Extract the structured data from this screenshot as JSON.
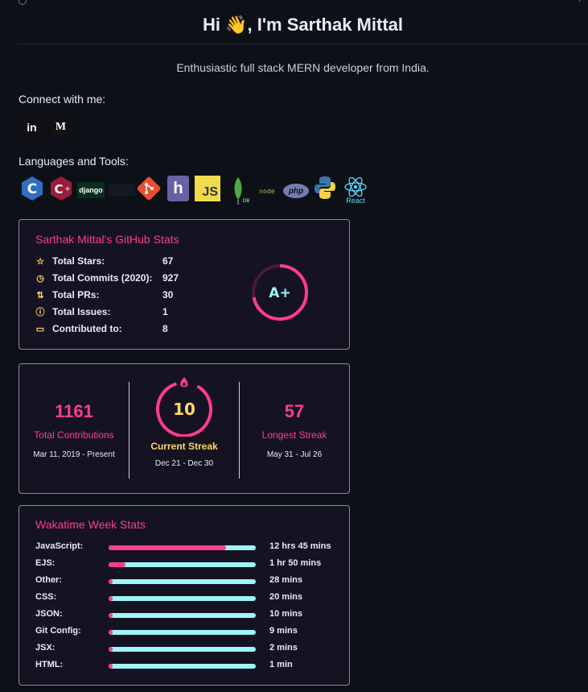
{
  "header": {
    "title": "Hi 👋, I'm Sarthak Mittal",
    "subtitle": "Enthusiastic full stack MERN developer from India."
  },
  "connect": {
    "heading": "Connect with me:",
    "links": [
      {
        "name": "linkedin",
        "glyph": "in"
      },
      {
        "name": "medium",
        "glyph": "M"
      }
    ]
  },
  "languages": {
    "heading": "Languages and Tools:",
    "tools": [
      {
        "name": "c",
        "label": "C"
      },
      {
        "name": "cplusplus",
        "label": "C++"
      },
      {
        "name": "django",
        "label": "django"
      },
      {
        "name": "git",
        "label": ""
      },
      {
        "name": "heroku",
        "label": "h"
      },
      {
        "name": "javascript",
        "label": "JS"
      },
      {
        "name": "mongodb",
        "label": "DB"
      },
      {
        "name": "nodejs",
        "label": "node"
      },
      {
        "name": "php",
        "label": "php"
      },
      {
        "name": "python",
        "label": ""
      },
      {
        "name": "react",
        "label": "React"
      }
    ]
  },
  "github_stats": {
    "title": "Sarthak Mittal's GitHub Stats",
    "rows": [
      {
        "label": "Total Stars:",
        "value": "67",
        "icon": "star-icon"
      },
      {
        "label": "Total Commits (2020):",
        "value": "927",
        "icon": "clock-icon"
      },
      {
        "label": "Total PRs:",
        "value": "30",
        "icon": "pull-request-icon"
      },
      {
        "label": "Total Issues:",
        "value": "1",
        "icon": "issue-icon"
      },
      {
        "label": "Contributed to:",
        "value": "8",
        "icon": "repo-icon"
      }
    ],
    "grade": "A+",
    "grade_progress": 0.72
  },
  "streak": {
    "total": {
      "value": "1161",
      "label": "Total Contributions",
      "range": "Mar 11, 2019 - Present"
    },
    "current": {
      "value": "10",
      "label": "Current Streak",
      "range": "Dec 21 - Dec 30"
    },
    "longest": {
      "value": "57",
      "label": "Longest Streak",
      "range": "May 31 - Jul 26"
    }
  },
  "wakatime": {
    "title": "Wakatime Week Stats",
    "languages": [
      {
        "name": "JavaScript:",
        "time": "12 hrs 45 mins",
        "percent": 80
      },
      {
        "name": "EJS:",
        "time": "1 hr 50 mins",
        "percent": 11.5
      },
      {
        "name": "Other:",
        "time": "28 mins",
        "percent": 3
      },
      {
        "name": "CSS:",
        "time": "20 mins",
        "percent": 2
      },
      {
        "name": "JSON:",
        "time": "10 mins",
        "percent": 1
      },
      {
        "name": "Git Config:",
        "time": "9 mins",
        "percent": 1
      },
      {
        "name": "JSX:",
        "time": "2 mins",
        "percent": 0.3
      },
      {
        "name": "HTML:",
        "time": "1 min",
        "percent": 0.2
      }
    ]
  },
  "colors": {
    "accent": "#ff3e8a",
    "icon": "#ffd866",
    "bar_bg": "#9ef5f5",
    "card_bg": "#151321"
  }
}
